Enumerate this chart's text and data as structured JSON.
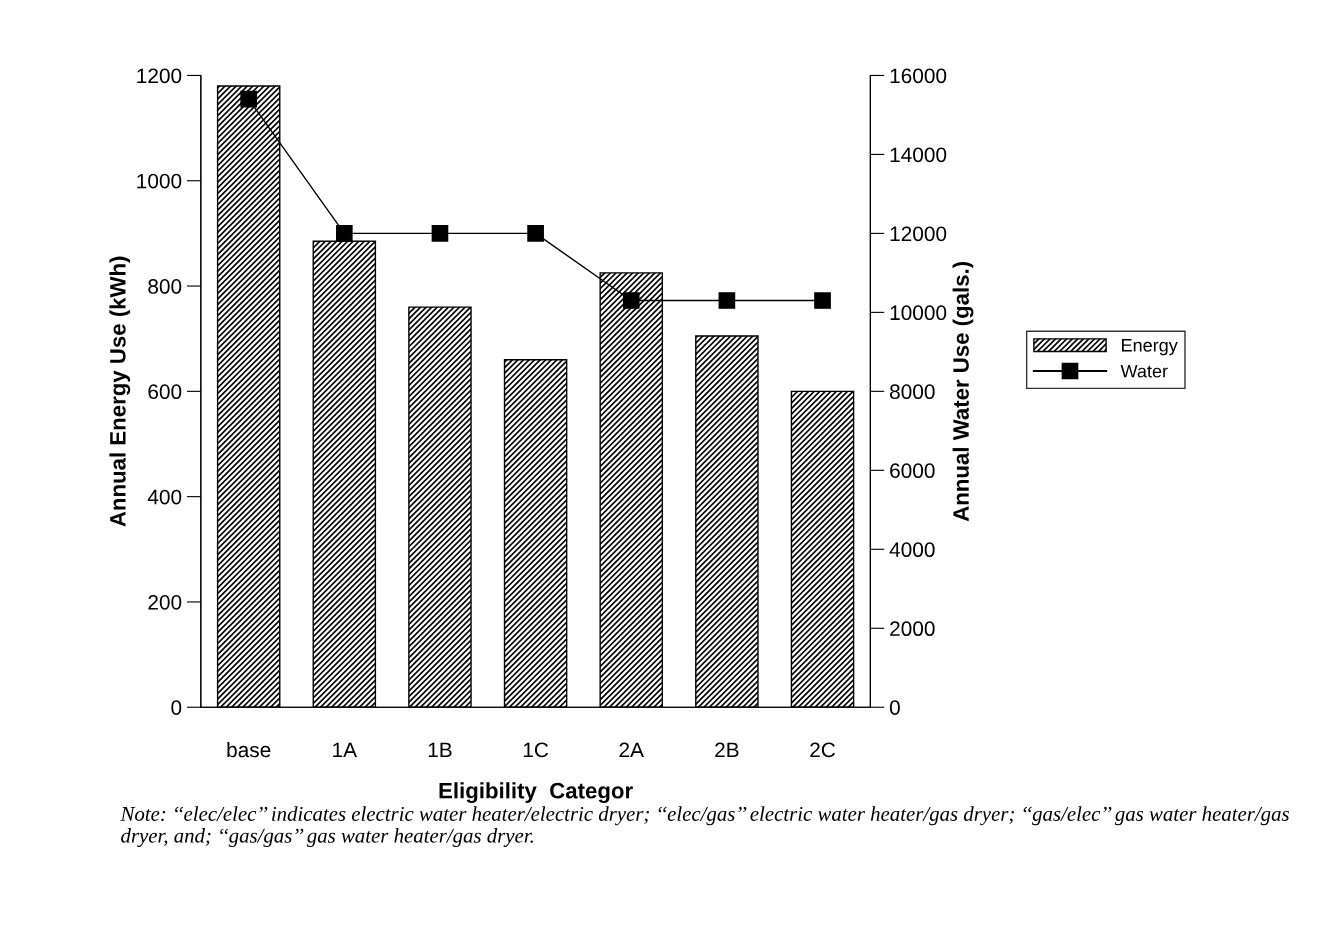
{
  "chart_data": {
    "type": "bar",
    "xlabel": "Eligibility  Categor",
    "ylabel": "Annual Energy Use (kWh)",
    "y2label": "Annual Water Use (gals.)",
    "categories": [
      "base",
      "1A",
      "1B",
      "1C",
      "2A",
      "2B",
      "2C"
    ],
    "series": [
      {
        "name": "Energy",
        "color": "#000000",
        "values": [
          1180,
          885,
          760,
          660,
          825,
          705,
          600
        ]
      },
      {
        "name": "Water",
        "type": "line",
        "axis": "y2",
        "color": "#000000",
        "marker": "square",
        "values": [
          15400,
          12000,
          12000,
          12000,
          10300,
          10300,
          10300
        ]
      }
    ],
    "ylim": [
      0,
      1200
    ],
    "yticks": [
      0,
      200,
      400,
      600,
      800,
      1000,
      1200
    ],
    "y2lim": [
      0,
      16000
    ],
    "y2ticks": [
      0,
      2000,
      4000,
      6000,
      8000,
      10000,
      12000,
      14000,
      16000
    ],
    "legend": "right",
    "grid": false,
    "annotations": [
      "Note: ‘‘elec/elec’’ indicates electric water heater/electric dryer; ‘‘elec/gas’’ electric water heater/gas dryer; ‘‘gas/elec’’ gas water heater/gas dryer, and; ‘‘gas/gas’’ gas water heater/gas dryer."
    ]
  }
}
